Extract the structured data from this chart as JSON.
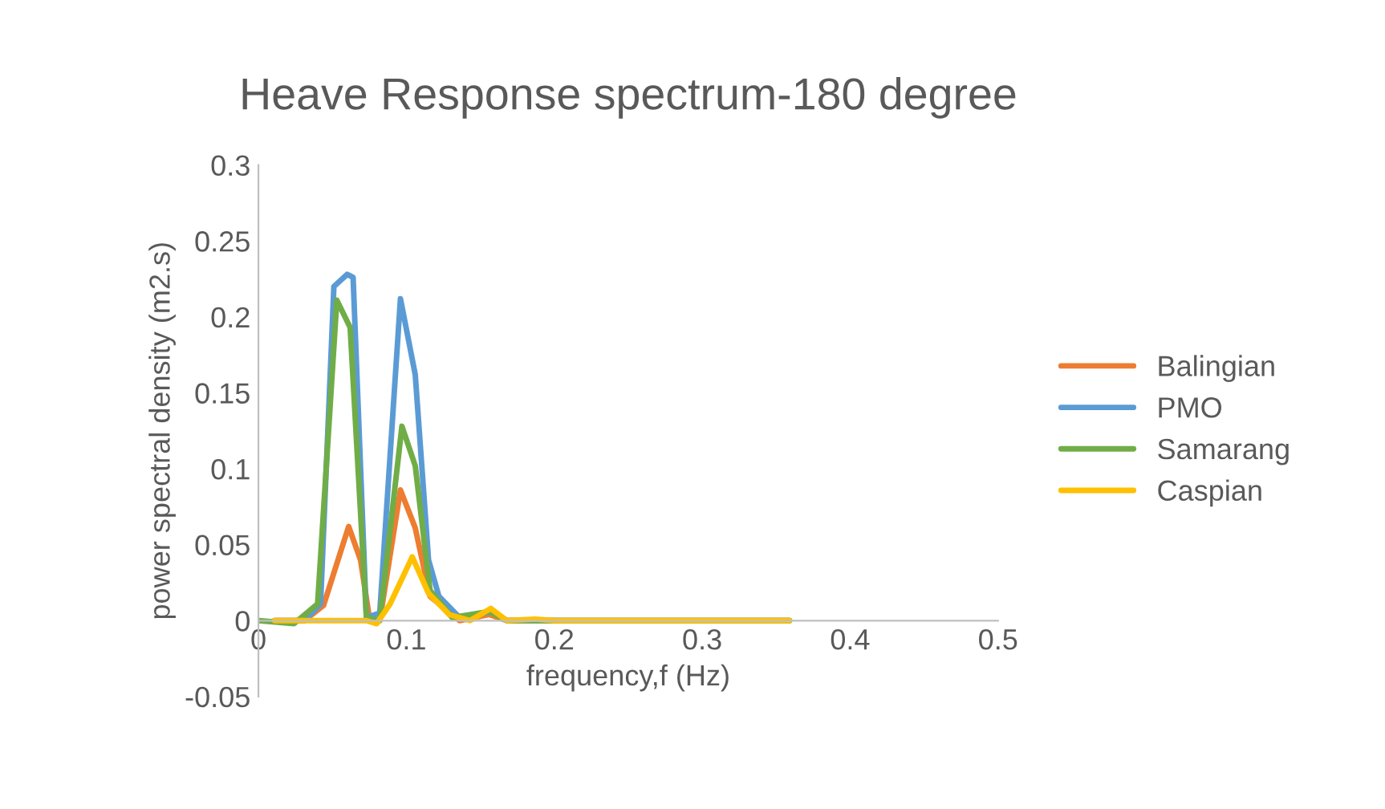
{
  "chart_data": {
    "type": "line",
    "title": "Heave Response spectrum-180 degree",
    "xlabel": "frequency,f (Hz)",
    "ylabel": "power spectral density (m2.s)",
    "xlim": [
      0,
      0.5
    ],
    "xticks": [
      0,
      0.1,
      0.2,
      0.3,
      0.4,
      0.5
    ],
    "ylim": [
      -0.05,
      0.3
    ],
    "yticks": [
      -0.05,
      0,
      0.05,
      0.1,
      0.15,
      0.2,
      0.25,
      0.3
    ],
    "grid": false,
    "legend": "right",
    "marker": "none",
    "line_style": "solid",
    "series": [
      {
        "name": "Balingian",
        "color": "#ed7d31",
        "x": [
          0.011,
          0.031,
          0.044,
          0.061,
          0.069,
          0.075,
          0.082,
          0.096,
          0.106,
          0.116,
          0.136,
          0.156,
          0.168,
          0.359
        ],
        "values": [
          0,
          0,
          0.01,
          0.062,
          0.04,
          0.002,
          0,
          0.086,
          0.061,
          0.016,
          0,
          0.004,
          0,
          0
        ]
      },
      {
        "name": "PMO",
        "color": "#5b9bd5",
        "x": [
          0.011,
          0.031,
          0.042,
          0.051,
          0.06,
          0.064,
          0.073,
          0.082,
          0.096,
          0.106,
          0.115,
          0.122,
          0.136,
          0.158,
          0.168,
          0.359
        ],
        "values": [
          0,
          0,
          0.011,
          0.22,
          0.228,
          0.226,
          0.002,
          0.005,
          0.212,
          0.162,
          0.04,
          0.016,
          0.002,
          0.006,
          0,
          0
        ]
      },
      {
        "name": "Samarang",
        "color": "#70ad47",
        "x": [
          0,
          0.024,
          0.04,
          0.053,
          0.062,
          0.073,
          0.082,
          0.097,
          0.106,
          0.116,
          0.131,
          0.156,
          0.168,
          0.359
        ],
        "values": [
          0,
          -0.002,
          0.011,
          0.211,
          0.193,
          0.002,
          0,
          0.128,
          0.102,
          0.02,
          0.002,
          0.006,
          0,
          0
        ]
      },
      {
        "name": "Caspian",
        "color": "#ffc000",
        "x": [
          0.011,
          0.073,
          0.08,
          0.089,
          0.104,
          0.115,
          0.129,
          0.143,
          0.157,
          0.168,
          0.187,
          0.2,
          0.359
        ],
        "values": [
          0,
          0,
          -0.002,
          0.011,
          0.042,
          0.018,
          0.004,
          0,
          0.008,
          0,
          0.001,
          0,
          0
        ]
      }
    ]
  }
}
